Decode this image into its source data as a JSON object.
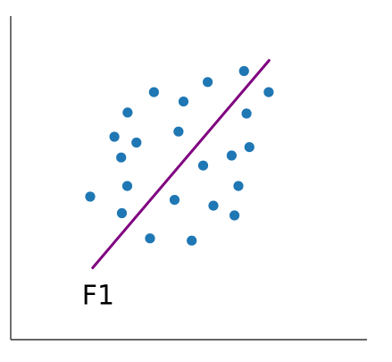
{
  "chart_data": {
    "type": "scatter",
    "title": "",
    "xlabel": "",
    "ylabel": "",
    "xlim": [
      0,
      10
    ],
    "ylim": [
      0,
      10
    ],
    "grid": false,
    "legend": "none",
    "series": [
      {
        "color": "#1f77b4",
        "points": [
          [
            6.55,
            8.3
          ],
          [
            5.53,
            7.96
          ],
          [
            4.02,
            7.65
          ],
          [
            7.24,
            7.65
          ],
          [
            4.85,
            7.36
          ],
          [
            3.28,
            7.02
          ],
          [
            6.62,
            6.99
          ],
          [
            4.71,
            6.43
          ],
          [
            2.91,
            6.27
          ],
          [
            3.53,
            6.09
          ],
          [
            6.7,
            5.95
          ],
          [
            3.1,
            5.63
          ],
          [
            6.2,
            5.69
          ],
          [
            5.4,
            5.38
          ],
          [
            3.27,
            4.75
          ],
          [
            6.39,
            4.75
          ],
          [
            2.23,
            4.42
          ],
          [
            4.6,
            4.32
          ],
          [
            5.69,
            4.14
          ],
          [
            3.12,
            3.91
          ],
          [
            6.28,
            3.84
          ],
          [
            3.91,
            3.13
          ],
          [
            5.08,
            3.06
          ]
        ]
      }
    ],
    "annotations": [
      {
        "type": "line",
        "label": "F1",
        "color": "#800080",
        "from": [
          2.3,
          2.22
        ],
        "to": [
          7.25,
          8.63
        ]
      }
    ]
  }
}
